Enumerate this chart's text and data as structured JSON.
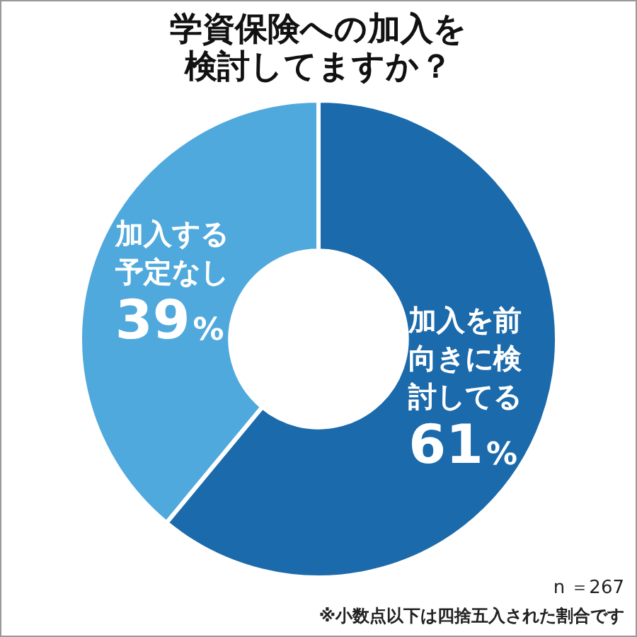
{
  "chart_data": {
    "type": "donut",
    "title": "学資保険への加入を検討してますか？",
    "categories": [
      "加入を前向きに検討してる",
      "加入する予定なし"
    ],
    "values": [
      61,
      39
    ],
    "colors": [
      "#1b6aab",
      "#4fa9dd"
    ],
    "value_labels": [
      "61%",
      "39%"
    ],
    "legend": false,
    "annotations": [
      "n ＝267",
      "※小数点以下は四捨五入された割合です"
    ]
  }
}
